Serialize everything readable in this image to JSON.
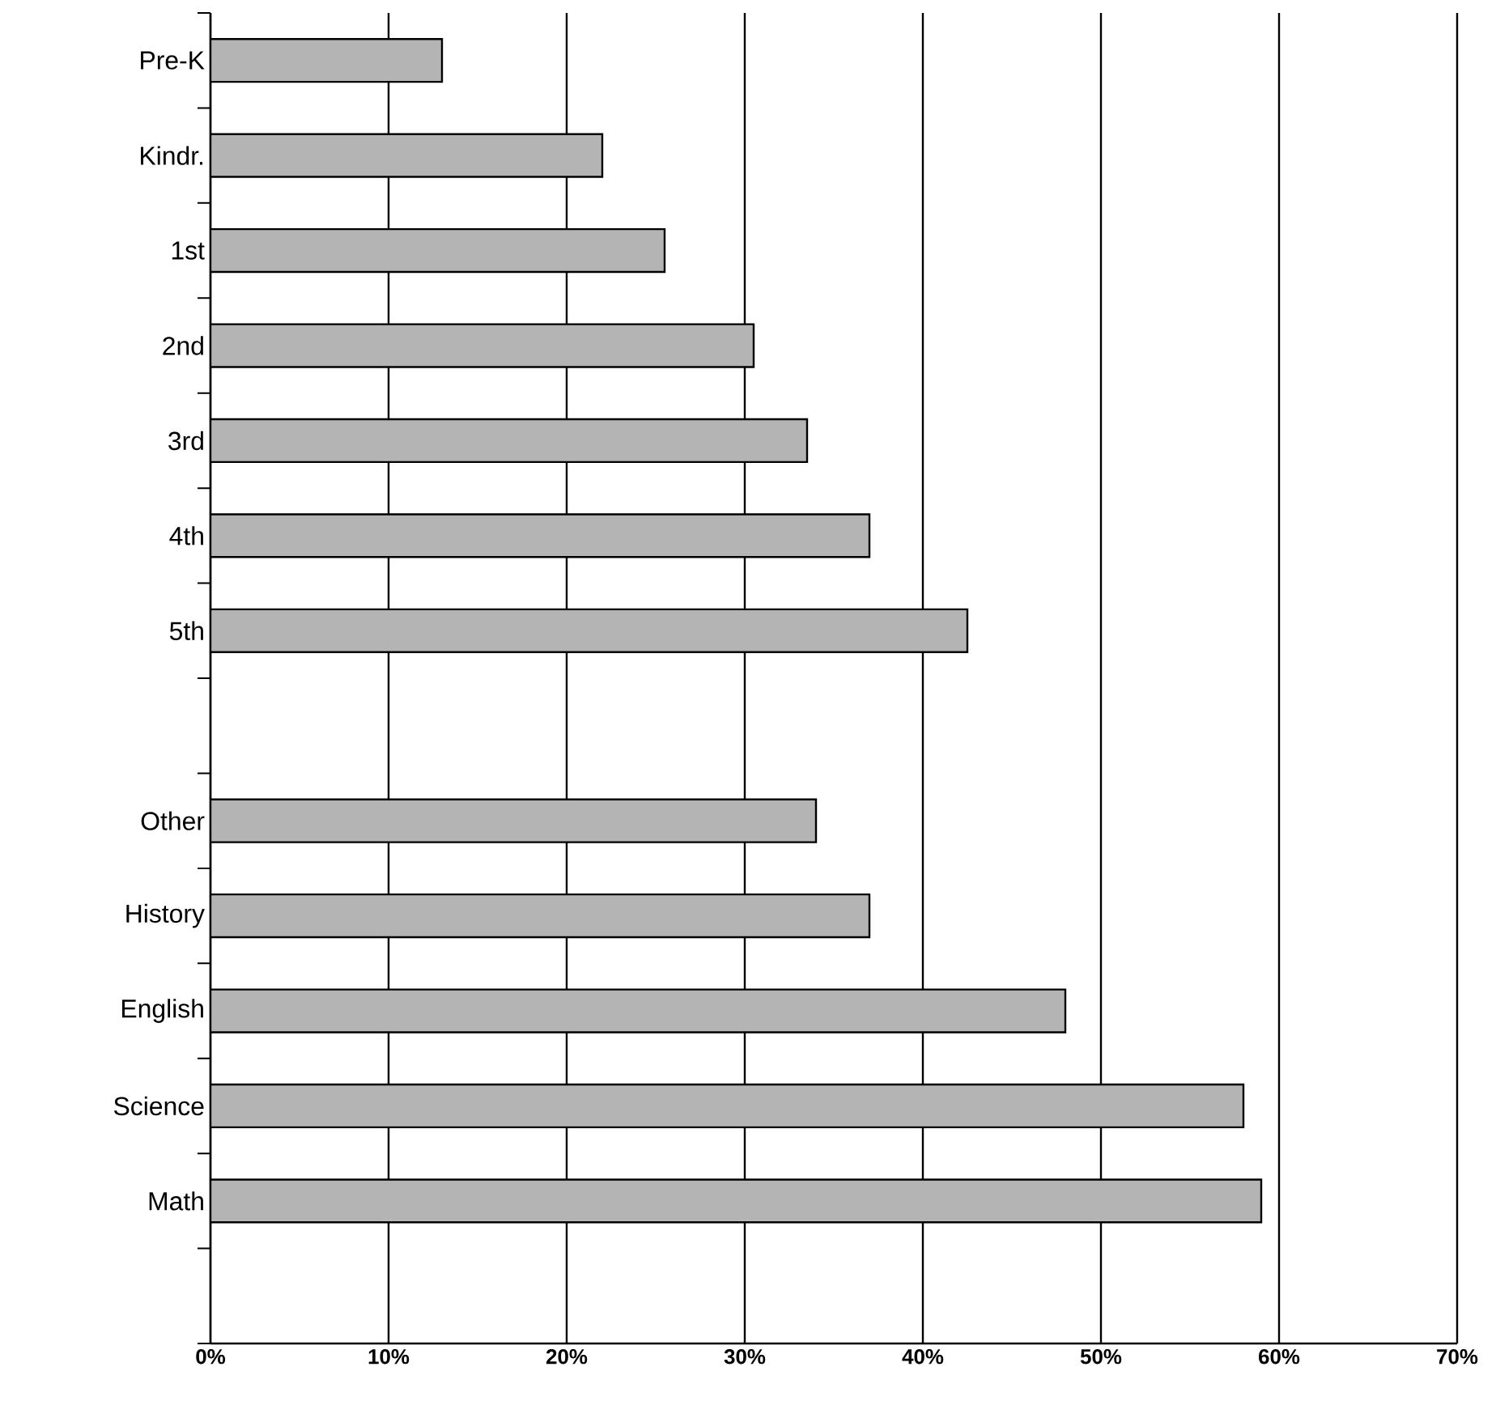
{
  "chart_data": {
    "type": "bar",
    "orientation": "horizontal",
    "categories": [
      "Pre-K",
      "Kindr.",
      "1st",
      "2nd",
      "3rd",
      "4th",
      "5th",
      null,
      "Other",
      "History",
      "English",
      "Science",
      "Math",
      null
    ],
    "values": [
      13,
      22,
      25.5,
      30.5,
      33.5,
      37,
      42.5,
      null,
      34,
      37,
      48,
      58,
      59,
      null
    ],
    "color": "#b4b4b4",
    "xlim": [
      0,
      70
    ],
    "xticks": [
      {
        "value": 0,
        "label": "0%"
      },
      {
        "value": 10,
        "label": "10%"
      },
      {
        "value": 20,
        "label": "20%"
      },
      {
        "value": 30,
        "label": "30%"
      },
      {
        "value": 40,
        "label": "40%"
      },
      {
        "value": 50,
        "label": "50%"
      },
      {
        "value": 60,
        "label": "60%"
      },
      {
        "value": 70,
        "label": "70%"
      }
    ],
    "grid": "x"
  }
}
